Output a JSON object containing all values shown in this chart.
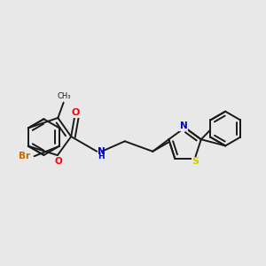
{
  "background_color": "#e8e8e8",
  "bond_color": "#1a1a1a",
  "atom_colors": {
    "Br": "#cc6600",
    "O": "#ff0000",
    "N": "#0000cc",
    "S": "#cccc00",
    "C": "#1a1a1a"
  },
  "figsize": [
    3.0,
    3.0
  ],
  "dpi": 100
}
